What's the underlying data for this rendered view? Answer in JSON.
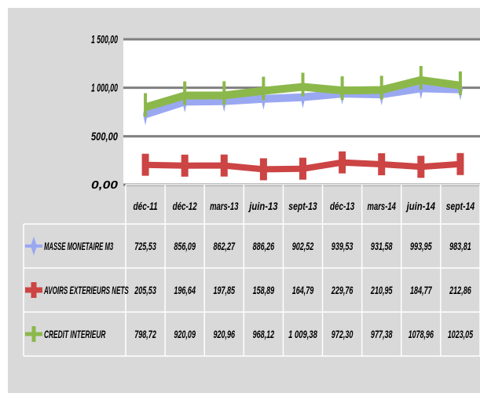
{
  "chart_data": {
    "type": "line",
    "title": "",
    "xlabel": "",
    "ylabel": "",
    "ylim": [
      0,
      1500
    ],
    "yticks": [
      "1 500,00",
      "1 000,00",
      "500,00",
      "0,00"
    ],
    "ytick_values": [
      1500,
      1000,
      500,
      0
    ],
    "grid": true,
    "legend": "table-below",
    "categories": [
      "déc-11",
      "déc-12",
      "mars-13",
      "juin-13",
      "sept-13",
      "déc-13",
      "mars-14",
      "juin-14",
      "sept-14"
    ],
    "series": [
      {
        "name": "MASSE MONETAIRE M3",
        "color": "#9aa8f2",
        "marker": "diamond",
        "values": [
          725.53,
          856.09,
          862.27,
          886.26,
          902.52,
          939.53,
          931.58,
          993.95,
          983.81
        ],
        "labels": [
          "725,53",
          "856,09",
          "862,27",
          "886,26",
          "902,52",
          "939,53",
          "931,58",
          "993,95",
          "983,81"
        ]
      },
      {
        "name": "AVOIRS EXTERIEURS NETS",
        "color": "#cc4444",
        "marker": "cross",
        "values": [
          205.53,
          196.64,
          197.85,
          158.89,
          164.79,
          229.76,
          210.95,
          184.77,
          212.86
        ],
        "labels": [
          "205,53",
          "196,64",
          "197,85",
          "158,89",
          "164,79",
          "229,76",
          "210,95",
          "184,77",
          "212,86"
        ]
      },
      {
        "name": "CREDIT INTERIEUR",
        "color": "#8cb84b",
        "marker": "plus",
        "values": [
          798.72,
          920.09,
          920.96,
          968.12,
          1009.38,
          972.3,
          977.38,
          1078.96,
          1023.05
        ],
        "labels": [
          "798,72",
          "920,09",
          "920,96",
          "968,12",
          "1 009,38",
          "972,30",
          "977,38",
          "1078,96",
          "1023,05"
        ]
      }
    ]
  }
}
